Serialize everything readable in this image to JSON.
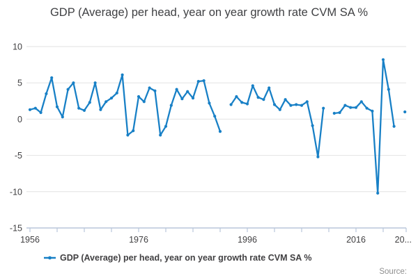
{
  "title": "GDP (Average) per head, year on year growth rate CVM SA %",
  "legend": {
    "label": "GDP (Average) per head, year on year growth rate CVM SA %"
  },
  "source_label": "Source:",
  "colors": {
    "line": "#1880c6",
    "grid": "#e2e2e2",
    "axis": "#b9c6da",
    "text": "#414042",
    "source_text": "#8e8e8e"
  },
  "chart_data": {
    "type": "line",
    "title": "GDP (Average) per head, year on year growth rate CVM SA %",
    "xlabel": "",
    "ylabel": "%",
    "ylim": [
      -15,
      10
    ],
    "grid": "horizontal",
    "legend_position": "bottom",
    "marker": "circle",
    "x": [
      1956,
      1957,
      1958,
      1959,
      1960,
      1961,
      1962,
      1963,
      1964,
      1965,
      1966,
      1967,
      1968,
      1969,
      1970,
      1971,
      1972,
      1973,
      1974,
      1975,
      1976,
      1977,
      1978,
      1979,
      1980,
      1981,
      1982,
      1983,
      1984,
      1985,
      1986,
      1987,
      1988,
      1989,
      1990,
      1991,
      1992,
      1993,
      1994,
      1995,
      1996,
      1997,
      1998,
      1999,
      2000,
      2001,
      2002,
      2003,
      2004,
      2005,
      2006,
      2007,
      2008,
      2009,
      2010,
      2011,
      2012,
      2013,
      2014,
      2015,
      2016,
      2017,
      2018,
      2019,
      2020,
      2021,
      2022,
      2023,
      2024,
      2025
    ],
    "values": [
      1.3,
      1.5,
      0.9,
      3.5,
      5.7,
      1.7,
      0.3,
      4.1,
      5.0,
      1.5,
      1.2,
      2.3,
      5.0,
      1.3,
      2.4,
      2.9,
      3.6,
      6.1,
      -2.2,
      -1.6,
      3.1,
      2.4,
      4.3,
      3.9,
      -2.2,
      -1.0,
      1.9,
      4.1,
      2.8,
      3.8,
      2.9,
      5.2,
      5.3,
      2.2,
      0.4,
      -1.7,
      null,
      2.0,
      3.1,
      2.3,
      2.1,
      4.6,
      3.0,
      2.7,
      4.3,
      2.0,
      1.3,
      2.7,
      1.9,
      2.0,
      1.9,
      2.4,
      -0.9,
      -5.2,
      1.5,
      null,
      0.8,
      0.9,
      1.9,
      1.6,
      1.6,
      2.4,
      1.5,
      1.1,
      -10.2,
      8.2,
      4.1,
      -1.0,
      null,
      1.0
    ],
    "missing_years": [
      1992,
      2011,
      2024
    ],
    "yticks": [
      10,
      5,
      0,
      -5,
      -10,
      -15
    ],
    "ytick_labels": [
      "10",
      "5",
      "0",
      "-5",
      "-10",
      "-15"
    ],
    "xtick_minor_step_years": 5,
    "xtick_labeled_years": [
      1956,
      1976,
      1996,
      2016
    ],
    "xtick_labels": [
      "1956",
      "1976",
      "1996",
      "2016",
      "20..."
    ],
    "xtick_end_label": "20..."
  }
}
